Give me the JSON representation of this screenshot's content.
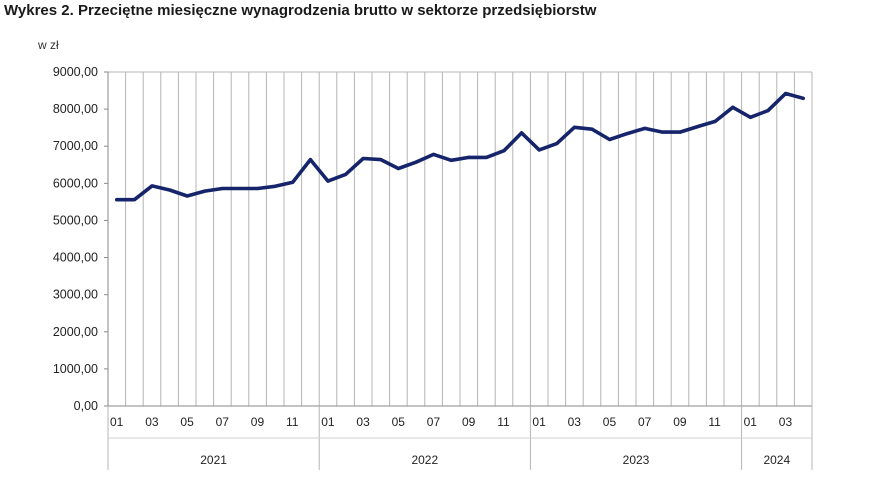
{
  "chart_data": {
    "type": "line",
    "title": "Wykres 2. Przeciętne miesięczne wynagrodzenia brutto w sektorze przedsiębiorstw",
    "ylabel": "w zł",
    "ylim": [
      0,
      9000
    ],
    "yticks": [
      "0,00",
      "1000,00",
      "2000,00",
      "3000,00",
      "4000,00",
      "5000,00",
      "6000,00",
      "7000,00",
      "8000,00",
      "9000,00"
    ],
    "ytick_values": [
      0,
      1000,
      2000,
      3000,
      4000,
      5000,
      6000,
      7000,
      8000,
      9000
    ],
    "grid": "vertical",
    "color": "#16256b",
    "x": [
      "2021-01",
      "2021-02",
      "2021-03",
      "2021-04",
      "2021-05",
      "2021-06",
      "2021-07",
      "2021-08",
      "2021-09",
      "2021-10",
      "2021-11",
      "2021-12",
      "2022-01",
      "2022-02",
      "2022-03",
      "2022-04",
      "2022-05",
      "2022-06",
      "2022-07",
      "2022-08",
      "2022-09",
      "2022-10",
      "2022-11",
      "2022-12",
      "2023-01",
      "2023-02",
      "2023-03",
      "2023-04",
      "2023-05",
      "2023-06",
      "2023-07",
      "2023-08",
      "2023-09",
      "2023-10",
      "2023-11",
      "2023-12",
      "2024-01",
      "2024-02",
      "2024-03",
      "2024-04"
    ],
    "values": [
      5560,
      5560,
      5930,
      5820,
      5660,
      5790,
      5860,
      5860,
      5860,
      5920,
      6030,
      6640,
      6060,
      6240,
      6670,
      6640,
      6400,
      6570,
      6780,
      6620,
      6700,
      6700,
      6880,
      7360,
      6900,
      7070,
      7510,
      7460,
      7180,
      7340,
      7480,
      7380,
      7380,
      7530,
      7670,
      8050,
      7780,
      7960,
      8420,
      8290
    ],
    "month_labels": [
      "01",
      "",
      "03",
      "",
      "05",
      "",
      "07",
      "",
      "09",
      "",
      "11",
      "",
      "01",
      "",
      "03",
      "",
      "05",
      "",
      "07",
      "",
      "09",
      "",
      "11",
      "",
      "01",
      "",
      "03",
      "",
      "05",
      "",
      "07",
      "",
      "09",
      "",
      "11",
      "",
      "01",
      "",
      "03",
      ""
    ],
    "year_groups": [
      {
        "label": "2021",
        "months": 12
      },
      {
        "label": "2022",
        "months": 12
      },
      {
        "label": "2023",
        "months": 12
      },
      {
        "label": "2024",
        "months": 4
      }
    ]
  }
}
